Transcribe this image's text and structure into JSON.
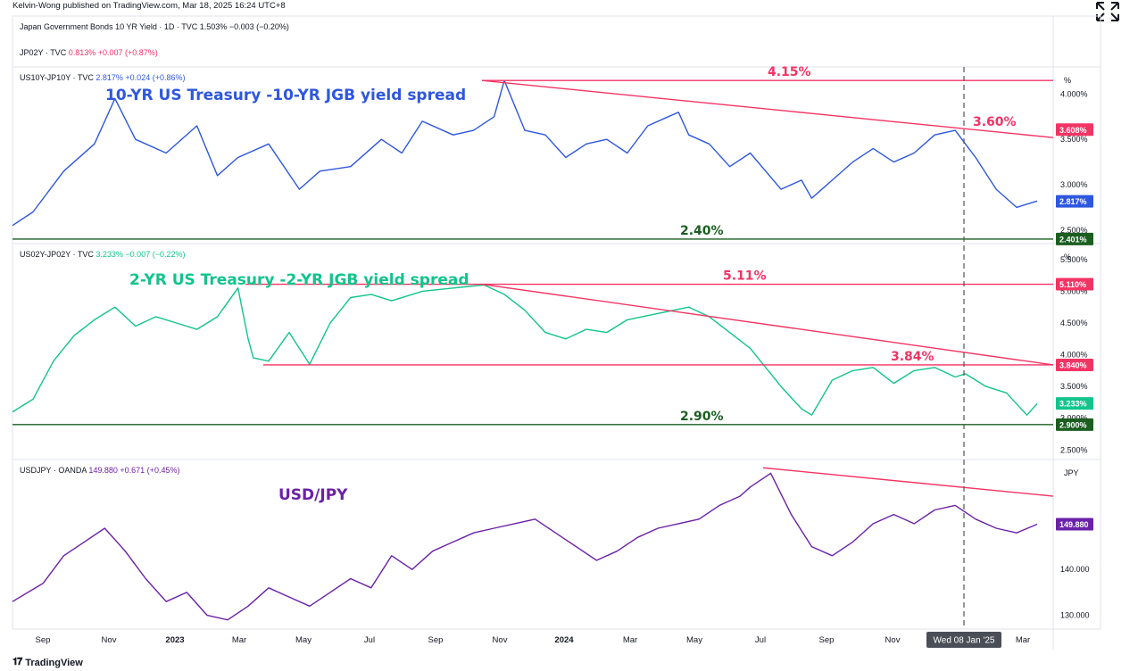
{
  "publisher": "Kelvin-Wong published on TradingView.com, Mar 18, 2025 16:24 UTC+8",
  "footer_brand": "TradingView",
  "colors": {
    "us10_line": "#2e57e0",
    "us2_line": "#12c48b",
    "usdjpy_line": "#6b21a8",
    "resistance": "#f23464",
    "support": "#1b5e20",
    "grid": "#e0e3eb"
  },
  "chart_data": [
    {
      "type": "line",
      "legend": [
        {
          "symbol": "Japan Government Bonds 10 YR Yield · 1D · TVC",
          "value": "1.503%",
          "change": "−0.003 (−0.20%)"
        },
        {
          "symbol": "JP02Y · TVC",
          "value": "0.813%",
          "change": "+0.007 (+0.87%)"
        }
      ]
    },
    {
      "type": "line",
      "legend": {
        "symbol": "US10Y-JP10Y · TVC",
        "value": "2.817%",
        "change": "+0.024 (+0.86%)"
      },
      "title": "10-YR US Treasury -10-YR JGB yield spread",
      "axis_unit": "%",
      "y_ticks": [
        "4.000%",
        "3.500%",
        "3.000%",
        "2.500%"
      ],
      "ylim": [
        2.35,
        4.3
      ],
      "price_badges": [
        {
          "label": "3.608%",
          "value": 3.608,
          "color": "#f23464"
        },
        {
          "label": "2.817%",
          "value": 2.817,
          "color": "#2e57e0"
        },
        {
          "label": "2.401%",
          "value": 2.401,
          "color": "#1b5e20"
        }
      ],
      "annotations": [
        {
          "text": "4.15%",
          "value": 4.15
        },
        {
          "text": "3.60%",
          "value": 3.6
        },
        {
          "text": "2.40%",
          "value": 2.4
        }
      ],
      "levels": [
        4.15,
        2.4
      ],
      "series": [
        {
          "x": [
            0,
            0.02,
            0.05,
            0.08,
            0.1,
            0.12,
            0.15,
            0.18,
            0.2,
            0.22,
            0.25,
            0.28,
            0.3,
            0.33,
            0.36,
            0.38,
            0.4,
            0.43,
            0.45,
            0.47,
            0.48,
            0.5,
            0.52,
            0.54,
            0.56,
            0.58,
            0.6,
            0.62,
            0.64,
            0.65,
            0.66,
            0.68,
            0.7,
            0.72,
            0.75,
            0.77,
            0.78,
            0.8,
            0.82,
            0.84,
            0.86,
            0.88,
            0.9,
            0.92,
            0.93,
            0.94,
            0.96,
            0.98,
            1.0
          ],
          "y": [
            2.55,
            2.7,
            3.15,
            3.45,
            3.95,
            3.5,
            3.35,
            3.65,
            3.1,
            3.3,
            3.45,
            2.95,
            3.15,
            3.2,
            3.5,
            3.35,
            3.7,
            3.55,
            3.6,
            3.75,
            4.15,
            3.6,
            3.55,
            3.3,
            3.45,
            3.5,
            3.35,
            3.65,
            3.75,
            3.8,
            3.55,
            3.45,
            3.2,
            3.35,
            2.95,
            3.05,
            2.85,
            3.05,
            3.25,
            3.4,
            3.25,
            3.35,
            3.55,
            3.6,
            3.45,
            3.3,
            2.95,
            2.75,
            2.82
          ]
        }
      ]
    },
    {
      "type": "line",
      "legend": {
        "symbol": "US02Y-JP02Y · TVC",
        "value": "3.233%",
        "change": "−0.007 (−0.22%)"
      },
      "title": "2-YR US Treasury -2-YR JGB yield spread",
      "axis_unit": "%",
      "y_ticks": [
        "5.500%",
        "5.000%",
        "4.500%",
        "4.000%",
        "3.500%",
        "3.000%",
        "2.500%"
      ],
      "ylim": [
        2.35,
        5.75
      ],
      "price_badges": [
        {
          "label": "5.110%",
          "value": 5.11,
          "color": "#f23464"
        },
        {
          "label": "3.840%",
          "value": 3.84,
          "color": "#f23464"
        },
        {
          "label": "3.233%",
          "value": 3.233,
          "color": "#12c48b"
        },
        {
          "label": "2.900%",
          "value": 2.9,
          "color": "#1b5e20"
        }
      ],
      "annotations": [
        {
          "text": "5.11%",
          "value": 5.11
        },
        {
          "text": "3.84%",
          "value": 3.84
        },
        {
          "text": "2.90%",
          "value": 2.9
        }
      ],
      "levels": [
        5.11,
        3.84,
        2.9
      ],
      "series": [
        {
          "x": [
            0,
            0.02,
            0.04,
            0.06,
            0.08,
            0.1,
            0.12,
            0.14,
            0.16,
            0.18,
            0.2,
            0.22,
            0.23,
            0.235,
            0.25,
            0.27,
            0.29,
            0.31,
            0.33,
            0.35,
            0.37,
            0.4,
            0.43,
            0.46,
            0.48,
            0.5,
            0.52,
            0.54,
            0.56,
            0.58,
            0.6,
            0.63,
            0.66,
            0.68,
            0.72,
            0.75,
            0.77,
            0.78,
            0.8,
            0.82,
            0.84,
            0.86,
            0.88,
            0.9,
            0.92,
            0.93,
            0.95,
            0.97,
            0.99,
            1.0
          ],
          "y": [
            3.1,
            3.3,
            3.9,
            4.3,
            4.55,
            4.75,
            4.45,
            4.6,
            4.5,
            4.4,
            4.6,
            5.05,
            4.25,
            3.95,
            3.9,
            4.35,
            3.85,
            4.5,
            4.9,
            4.95,
            4.85,
            5.0,
            5.05,
            5.1,
            4.95,
            4.7,
            4.35,
            4.25,
            4.4,
            4.35,
            4.55,
            4.65,
            4.75,
            4.6,
            4.1,
            3.5,
            3.15,
            3.05,
            3.6,
            3.75,
            3.8,
            3.55,
            3.75,
            3.8,
            3.65,
            3.7,
            3.5,
            3.4,
            3.05,
            3.23
          ]
        }
      ]
    },
    {
      "type": "line",
      "legend": {
        "symbol": "USDJPY · OANDA",
        "value": "149.880",
        "change": "+0.671 (+0.45%)"
      },
      "title": "USD/JPY",
      "axis_unit": "JPY",
      "y_ticks": [
        "140.000",
        "130.000"
      ],
      "ylim": [
        127,
        164
      ],
      "price_badges": [
        {
          "label": "149.880",
          "value": 149.88,
          "color": "#6b21a8"
        }
      ],
      "annotations": [],
      "series": [
        {
          "x": [
            0,
            0.03,
            0.05,
            0.07,
            0.09,
            0.11,
            0.13,
            0.15,
            0.17,
            0.19,
            0.21,
            0.23,
            0.25,
            0.27,
            0.29,
            0.31,
            0.33,
            0.35,
            0.37,
            0.39,
            0.41,
            0.43,
            0.45,
            0.47,
            0.49,
            0.51,
            0.53,
            0.55,
            0.57,
            0.59,
            0.61,
            0.63,
            0.65,
            0.67,
            0.69,
            0.71,
            0.72,
            0.74,
            0.76,
            0.78,
            0.8,
            0.82,
            0.84,
            0.86,
            0.88,
            0.9,
            0.92,
            0.94,
            0.96,
            0.98,
            1.0
          ],
          "y": [
            133,
            137,
            143,
            146,
            149,
            144,
            138,
            133,
            135,
            130,
            129,
            132,
            136,
            134,
            132,
            135,
            138,
            136,
            143,
            140,
            144,
            146,
            148,
            149,
            150,
            151,
            148,
            145,
            142,
            144,
            147,
            149,
            150,
            151,
            154,
            156,
            158,
            161,
            152,
            145,
            143,
            146,
            150,
            152,
            150,
            153,
            154,
            151,
            149,
            148,
            149.88
          ]
        }
      ]
    }
  ],
  "x_axis": {
    "ticks": [
      "Sep",
      "Nov",
      "2023",
      "Mar",
      "May",
      "Jul",
      "Sep",
      "Nov",
      "2024",
      "Mar",
      "May",
      "Jul",
      "Sep",
      "Nov",
      "Mar"
    ],
    "crosshair_label": "Wed 08 Jan '25"
  }
}
